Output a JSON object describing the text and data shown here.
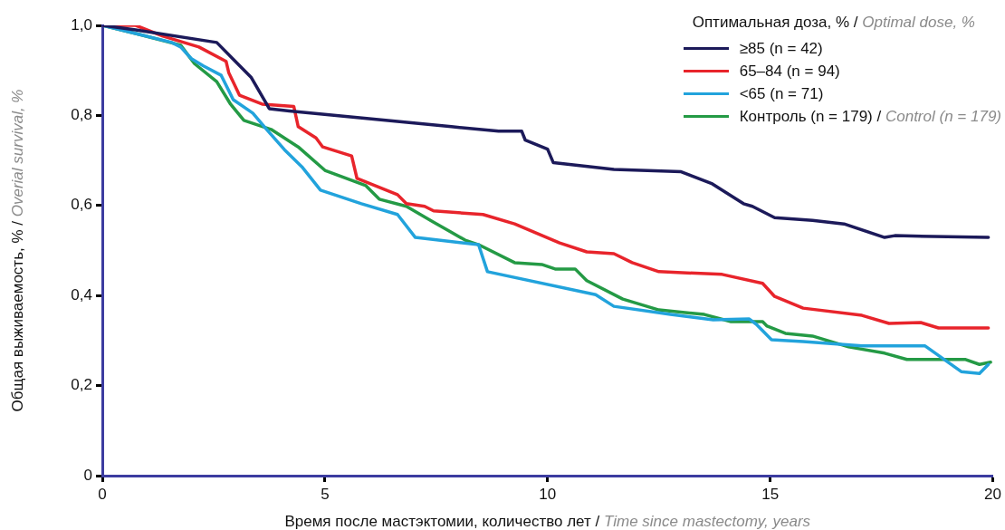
{
  "chart_data": {
    "type": "line",
    "xlabel": "Время после мастэктомии, количество лет / Time since mastectomy, years",
    "ylabel": "Общая выживаемость, % / Overial survival, %",
    "legend_title": "Оптимальная доза, % / Optimal dose, %",
    "legend": "top right",
    "grid": false,
    "marker": "none",
    "line_style": "solid",
    "xlim": [
      0,
      20
    ],
    "xticks": [
      0,
      5,
      10,
      15,
      20
    ],
    "ylim": [
      0,
      1
    ],
    "yticks": [
      0,
      {
        "value": 0.2,
        "label": "0,2"
      },
      {
        "value": 0.4,
        "label": "0,4"
      },
      {
        "value": 0.6,
        "label": "0,6"
      },
      {
        "value": 0.8,
        "label": "0,8"
      },
      {
        "value": 1,
        "label": "1,0"
      }
    ],
    "series": [
      {
        "name": "≥85 (n = 42)",
        "color": "#1c1a5a",
        "x": [
          0,
          0.75,
          2.57,
          3.34,
          3.75,
          4.2,
          7.84,
          8.9,
          9.42,
          9.5,
          10.0,
          10.13,
          11.49,
          13.0,
          13.7,
          14.4,
          14.6,
          15.1,
          15.95,
          16.66,
          17.57,
          17.8,
          19.9
        ],
        "values": [
          1.0,
          0.99,
          0.962,
          0.885,
          0.815,
          0.81,
          0.775,
          0.765,
          0.765,
          0.745,
          0.725,
          0.695,
          0.68,
          0.675,
          0.648,
          0.604,
          0.598,
          0.573,
          0.567,
          0.559,
          0.529,
          0.533,
          0.529
        ]
      },
      {
        "name": "65–84 (n = 94)",
        "color": "#e8242b",
        "x": [
          0,
          0.75,
          1.36,
          2.17,
          2.78,
          2.84,
          3.08,
          3.59,
          4.3,
          4.4,
          4.8,
          4.95,
          5.6,
          5.72,
          6.63,
          6.83,
          7.24,
          7.44,
          8.55,
          9.26,
          10.27,
          10.88,
          11.49,
          11.9,
          12.5,
          13.92,
          14.83,
          15.1,
          15.74,
          17.06,
          17.67,
          18.38,
          18.78,
          19.9
        ],
        "values": [
          1.0,
          1.0,
          0.976,
          0.952,
          0.92,
          0.895,
          0.845,
          0.825,
          0.82,
          0.775,
          0.75,
          0.73,
          0.71,
          0.66,
          0.624,
          0.604,
          0.598,
          0.588,
          0.58,
          0.559,
          0.517,
          0.497,
          0.493,
          0.473,
          0.453,
          0.447,
          0.427,
          0.398,
          0.372,
          0.356,
          0.338,
          0.34,
          0.328,
          0.328
        ]
      },
      {
        "name": "<65 (n = 71)",
        "color": "#22a3dc",
        "x": [
          0,
          0.75,
          1.56,
          1.76,
          2.0,
          2.27,
          2.67,
          2.94,
          3.38,
          3.69,
          4.09,
          4.5,
          4.9,
          5.82,
          6.63,
          7.03,
          8.45,
          8.65,
          11.08,
          11.49,
          12.76,
          13.72,
          14.53,
          14.69,
          15.03,
          15.74,
          17.06,
          18.48,
          19.29,
          19.7,
          19.9
        ],
        "values": [
          1.0,
          0.982,
          0.962,
          0.952,
          0.926,
          0.91,
          0.889,
          0.835,
          0.805,
          0.769,
          0.724,
          0.684,
          0.634,
          0.604,
          0.58,
          0.529,
          0.513,
          0.453,
          0.402,
          0.376,
          0.358,
          0.346,
          0.348,
          0.336,
          0.302,
          0.298,
          0.288,
          0.288,
          0.231,
          0.227,
          0.247
        ]
      },
      {
        "name": "Контроль (n = 179) / Control (n = 179)",
        "color": "#249a45",
        "x": [
          0,
          0.75,
          1.76,
          2.07,
          2.57,
          2.88,
          3.18,
          3.79,
          4.4,
          5.0,
          5.92,
          6.22,
          6.83,
          7.44,
          8.15,
          8.45,
          9.26,
          9.87,
          10.17,
          10.62,
          10.88,
          11.69,
          12.5,
          13.52,
          14.12,
          14.83,
          14.93,
          15.34,
          15.95,
          16.76,
          17.57,
          18.07,
          19.39,
          19.7,
          19.95
        ],
        "values": [
          1.0,
          0.982,
          0.956,
          0.915,
          0.875,
          0.825,
          0.789,
          0.769,
          0.73,
          0.678,
          0.644,
          0.614,
          0.598,
          0.563,
          0.523,
          0.513,
          0.473,
          0.469,
          0.459,
          0.459,
          0.433,
          0.392,
          0.368,
          0.358,
          0.342,
          0.342,
          0.332,
          0.316,
          0.31,
          0.286,
          0.272,
          0.258,
          0.258,
          0.247,
          0.252
        ]
      }
    ]
  }
}
